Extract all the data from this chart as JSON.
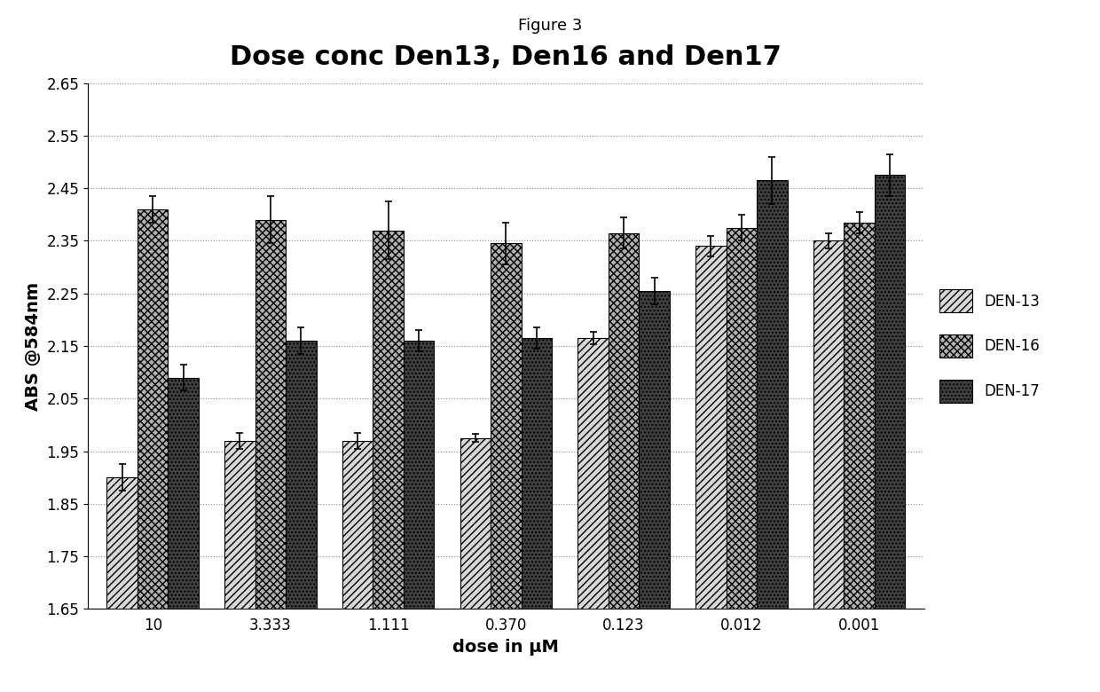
{
  "title": "Dose conc Den13, Den16 and Den17",
  "suptitle": "Figure 3",
  "xlabel": "dose in μM",
  "ylabel": "ABS @584nm",
  "categories": [
    "10",
    "3.333",
    "1.111",
    "0.370",
    "0.123",
    "0.012",
    "0.001"
  ],
  "series": {
    "DEN-13": {
      "values": [
        1.9,
        1.97,
        1.97,
        1.975,
        2.165,
        2.34,
        2.35
      ],
      "errors": [
        0.025,
        0.015,
        0.015,
        0.008,
        0.012,
        0.02,
        0.015
      ],
      "hatch": "////",
      "facecolor": "#d8d8d8",
      "edgecolor": "#000000"
    },
    "DEN-16": {
      "values": [
        2.41,
        2.39,
        2.37,
        2.345,
        2.365,
        2.375,
        2.385
      ],
      "errors": [
        0.025,
        0.045,
        0.055,
        0.04,
        0.03,
        0.025,
        0.02
      ],
      "hatch": "xxxx",
      "facecolor": "#b0b0b0",
      "edgecolor": "#000000"
    },
    "DEN-17": {
      "values": [
        2.09,
        2.16,
        2.16,
        2.165,
        2.255,
        2.465,
        2.475
      ],
      "errors": [
        0.025,
        0.025,
        0.02,
        0.02,
        0.025,
        0.045,
        0.04
      ],
      "hatch": "....",
      "facecolor": "#404040",
      "edgecolor": "#000000"
    }
  },
  "ylim": [
    1.65,
    2.65
  ],
  "yticks": [
    1.65,
    1.75,
    1.85,
    1.95,
    2.05,
    2.15,
    2.25,
    2.35,
    2.45,
    2.55,
    2.65
  ],
  "background_color": "#ffffff",
  "bar_width": 0.26,
  "title_fontsize": 22,
  "suptitle_fontsize": 13,
  "axis_label_fontsize": 14,
  "tick_fontsize": 12,
  "legend_fontsize": 12
}
